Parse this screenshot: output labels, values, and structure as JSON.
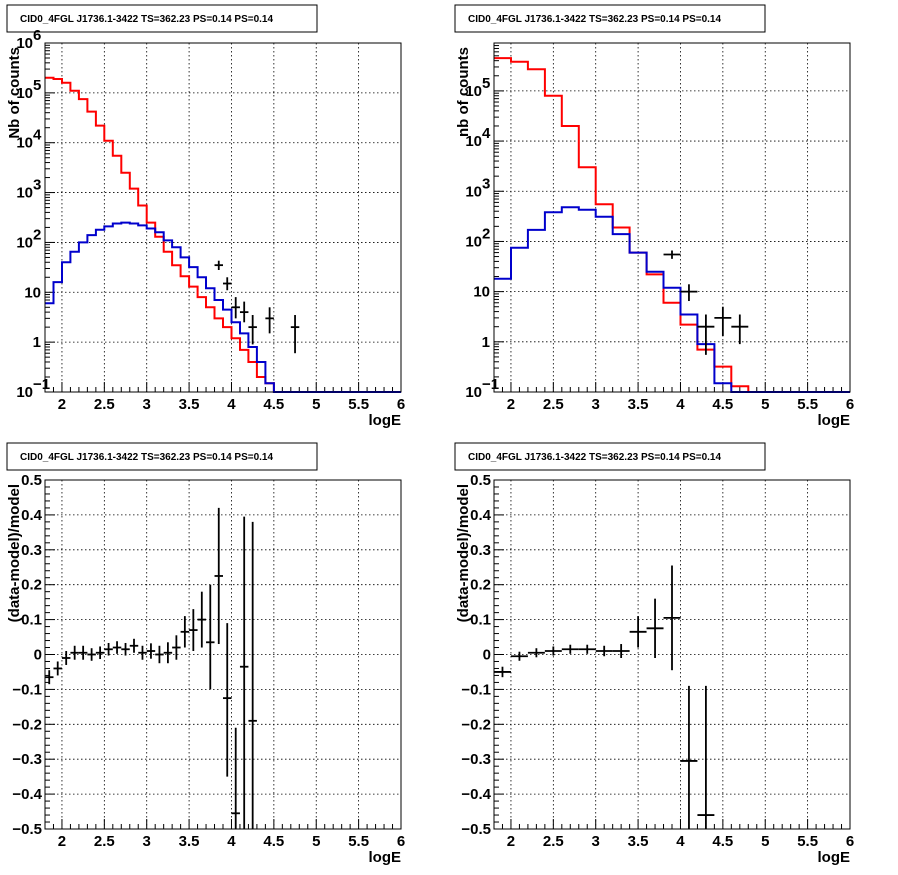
{
  "colors": {
    "model_total": "#ff0000",
    "model_component": "#0000cc",
    "data": "#000000"
  },
  "chart_data": [
    {
      "type": "line",
      "panel": "top-left",
      "title": "CID0_4FGL J1736.1-3422 TS=362.23 PS=0.14 PS=0.14",
      "xlabel": "logE",
      "ylabel": "Nb of counts",
      "xlim": [
        1.8,
        6.0
      ],
      "ylim": [
        0.1,
        1000000
      ],
      "log_y": true,
      "grid": true,
      "x_ticks": [
        "2",
        "2.5",
        "3",
        "3.5",
        "4",
        "4.5",
        "5",
        "5.5",
        "6"
      ],
      "x_tick_values": [
        2,
        2.5,
        3,
        3.5,
        4,
        4.5,
        5,
        5.5,
        6
      ],
      "y_ticks": [
        {
          "v": 0.1,
          "base": "10",
          "exp": "−1"
        },
        {
          "v": 1,
          "base": "1",
          "exp": ""
        },
        {
          "v": 10,
          "base": "10",
          "exp": ""
        },
        {
          "v": 100,
          "base": "10",
          "exp": "2"
        },
        {
          "v": 1000,
          "base": "10",
          "exp": "3"
        },
        {
          "v": 10000,
          "base": "10",
          "exp": "4"
        },
        {
          "v": 100000,
          "base": "10",
          "exp": "5"
        },
        {
          "v": 1000000,
          "base": "10",
          "exp": "6"
        }
      ],
      "bin_edges": [
        1.8,
        1.9,
        2.0,
        2.1,
        2.2,
        2.3,
        2.4,
        2.5,
        2.6,
        2.7,
        2.8,
        2.9,
        3.0,
        3.1,
        3.2,
        3.3,
        3.4,
        3.5,
        3.6,
        3.7,
        3.8,
        3.9,
        4.0,
        4.1,
        4.2,
        4.3,
        4.4,
        4.5,
        4.6,
        4.7,
        4.8,
        4.9,
        5.0,
        5.1,
        5.2,
        5.3,
        5.4,
        5.5,
        5.6,
        5.7,
        5.8,
        5.9,
        6.0
      ],
      "series": [
        {
          "color": "#ff0000",
          "values": [
            200000,
            190000,
            160000,
            110000,
            75000,
            42000,
            22000,
            11000,
            5500,
            2500,
            1200,
            550,
            250,
            130,
            65,
            35,
            21,
            13,
            8,
            5,
            3,
            2,
            1.2,
            0.7,
            0.4,
            0.2,
            0.15,
            0.1,
            0.1,
            0.1,
            0.1,
            0.1,
            0.1,
            0.1,
            0.1,
            0.1,
            0.1,
            0.1,
            0.1,
            0.1,
            0.1,
            0.1
          ]
        },
        {
          "color": "#0000cc",
          "values": [
            6,
            16,
            40,
            65,
            100,
            140,
            180,
            210,
            240,
            250,
            240,
            220,
            190,
            160,
            110,
            80,
            50,
            32,
            20,
            12,
            7,
            4.5,
            2.5,
            1.5,
            0.8,
            0.4,
            0.15,
            0.1,
            0.1,
            0.1,
            0.1,
            0.1,
            0.1,
            0.1,
            0.1,
            0.1,
            0.1,
            0.1,
            0.1,
            0.1,
            0.1,
            0.1
          ]
        }
      ],
      "points": [
        {
          "x": 3.85,
          "y": 35,
          "ylo": 28,
          "yhi": 43,
          "xerr": 0.05
        },
        {
          "x": 3.95,
          "y": 15,
          "ylo": 11,
          "yhi": 20,
          "xerr": 0.05
        },
        {
          "x": 4.05,
          "y": 5,
          "ylo": 3,
          "yhi": 8,
          "xerr": 0.05
        },
        {
          "x": 4.15,
          "y": 4,
          "ylo": 2.5,
          "yhi": 6.5,
          "xerr": 0.05
        },
        {
          "x": 4.25,
          "y": 2,
          "ylo": 0.9,
          "yhi": 3.5,
          "xerr": 0.05
        },
        {
          "x": 4.45,
          "y": 3,
          "ylo": 1.5,
          "yhi": 5,
          "xerr": 0.05
        },
        {
          "x": 4.75,
          "y": 2,
          "ylo": 0.6,
          "yhi": 3.5,
          "xerr": 0.05
        }
      ]
    },
    {
      "type": "line",
      "panel": "top-right",
      "title": "CID0_4FGL J1736.1-3422 TS=362.23 PS=0.14 PS=0.14",
      "xlabel": "logE",
      "ylabel": "nb of counts",
      "xlim": [
        1.8,
        6.0
      ],
      "ylim": [
        0.1,
        900000
      ],
      "log_y": true,
      "grid": true,
      "x_ticks": [
        "2",
        "2.5",
        "3",
        "3.5",
        "4",
        "4.5",
        "5",
        "5.5",
        "6"
      ],
      "x_tick_values": [
        2,
        2.5,
        3,
        3.5,
        4,
        4.5,
        5,
        5.5,
        6
      ],
      "y_ticks": [
        {
          "v": 0.1,
          "base": "10",
          "exp": "−1"
        },
        {
          "v": 1,
          "base": "1",
          "exp": ""
        },
        {
          "v": 10,
          "base": "10",
          "exp": ""
        },
        {
          "v": 100,
          "base": "10",
          "exp": "2"
        },
        {
          "v": 1000,
          "base": "10",
          "exp": "3"
        },
        {
          "v": 10000,
          "base": "10",
          "exp": "4"
        },
        {
          "v": 100000,
          "base": "10",
          "exp": "5"
        }
      ],
      "bin_edges": [
        1.8,
        2.0,
        2.2,
        2.4,
        2.6,
        2.8,
        3.0,
        3.2,
        3.4,
        3.6,
        3.8,
        4.0,
        4.2,
        4.4,
        4.6,
        4.8,
        5.0,
        5.2,
        5.4,
        5.6,
        5.8,
        6.0
      ],
      "series": [
        {
          "color": "#ff0000",
          "values": [
            450000,
            380000,
            270000,
            80000,
            20000,
            3000,
            550,
            190,
            60,
            22,
            6,
            2.2,
            0.7,
            0.32,
            0.13,
            0.1,
            0.1,
            0.1,
            0.1,
            0.1,
            0.1
          ]
        },
        {
          "color": "#0000cc",
          "values": [
            18,
            75,
            170,
            380,
            480,
            430,
            310,
            140,
            60,
            25,
            12,
            3.5,
            0.9,
            0.15,
            0.1,
            0.1,
            0.1,
            0.1,
            0.1,
            0.1,
            0.1
          ]
        }
      ],
      "points": [
        {
          "x": 3.9,
          "y": 55,
          "ylo": 45,
          "yhi": 66,
          "xerr": 0.1
        },
        {
          "x": 4.1,
          "y": 10,
          "ylo": 6.5,
          "yhi": 14,
          "xerr": 0.1
        },
        {
          "x": 4.3,
          "y": 2,
          "ylo": 0.55,
          "yhi": 3.5,
          "xerr": 0.1
        },
        {
          "x": 4.5,
          "y": 3,
          "ylo": 1.3,
          "yhi": 5,
          "xerr": 0.1
        },
        {
          "x": 4.7,
          "y": 2,
          "ylo": 0.9,
          "yhi": 3.5,
          "xerr": 0.1
        }
      ]
    },
    {
      "type": "scatter",
      "panel": "bottom-left",
      "title": "CID0_4FGL J1736.1-3422 TS=362.23 PS=0.14 PS=0.14",
      "xlabel": "logE",
      "ylabel": "(data-model)/model",
      "xlim": [
        1.8,
        6.0
      ],
      "ylim": [
        -0.5,
        0.5
      ],
      "log_y": false,
      "grid": true,
      "x_ticks": [
        "2",
        "2.5",
        "3",
        "3.5",
        "4",
        "4.5",
        "5",
        "5.5",
        "6"
      ],
      "x_tick_values": [
        2,
        2.5,
        3,
        3.5,
        4,
        4.5,
        5,
        5.5,
        6
      ],
      "y_ticks": [
        {
          "v": -0.5,
          "label": "−0.5"
        },
        {
          "v": -0.4,
          "label": "−0.4"
        },
        {
          "v": -0.3,
          "label": "−0.3"
        },
        {
          "v": -0.2,
          "label": "−0.2"
        },
        {
          "v": -0.1,
          "label": "−0.1"
        },
        {
          "v": 0,
          "label": "0"
        },
        {
          "v": 0.1,
          "label": "0.1"
        },
        {
          "v": 0.2,
          "label": "0.2"
        },
        {
          "v": 0.3,
          "label": "0.3"
        },
        {
          "v": 0.4,
          "label": "0.4"
        },
        {
          "v": 0.5,
          "label": "0.5"
        }
      ],
      "points": [
        {
          "x": 1.85,
          "y": -0.065,
          "ylo": -0.085,
          "yhi": -0.045,
          "xerr": 0.05
        },
        {
          "x": 1.95,
          "y": -0.04,
          "ylo": -0.06,
          "yhi": -0.02,
          "xerr": 0.05
        },
        {
          "x": 2.05,
          "y": -0.01,
          "ylo": -0.03,
          "yhi": 0.01,
          "xerr": 0.05
        },
        {
          "x": 2.15,
          "y": 0.005,
          "ylo": -0.015,
          "yhi": 0.025,
          "xerr": 0.05
        },
        {
          "x": 2.25,
          "y": 0.005,
          "ylo": -0.015,
          "yhi": 0.025,
          "xerr": 0.05
        },
        {
          "x": 2.35,
          "y": 0.0,
          "ylo": -0.018,
          "yhi": 0.018,
          "xerr": 0.05
        },
        {
          "x": 2.45,
          "y": 0.005,
          "ylo": -0.013,
          "yhi": 0.023,
          "xerr": 0.05
        },
        {
          "x": 2.55,
          "y": 0.015,
          "ylo": -0.003,
          "yhi": 0.033,
          "xerr": 0.05
        },
        {
          "x": 2.65,
          "y": 0.02,
          "ylo": 0.002,
          "yhi": 0.038,
          "xerr": 0.05
        },
        {
          "x": 2.75,
          "y": 0.015,
          "ylo": -0.003,
          "yhi": 0.033,
          "xerr": 0.05
        },
        {
          "x": 2.85,
          "y": 0.025,
          "ylo": 0.005,
          "yhi": 0.045,
          "xerr": 0.05
        },
        {
          "x": 2.95,
          "y": 0.005,
          "ylo": -0.015,
          "yhi": 0.025,
          "xerr": 0.05
        },
        {
          "x": 3.05,
          "y": 0.01,
          "ylo": -0.012,
          "yhi": 0.032,
          "xerr": 0.05
        },
        {
          "x": 3.15,
          "y": 0.0,
          "ylo": -0.025,
          "yhi": 0.025,
          "xerr": 0.05
        },
        {
          "x": 3.25,
          "y": 0.005,
          "ylo": -0.025,
          "yhi": 0.035,
          "xerr": 0.05
        },
        {
          "x": 3.35,
          "y": 0.02,
          "ylo": -0.015,
          "yhi": 0.055,
          "xerr": 0.05
        },
        {
          "x": 3.45,
          "y": 0.065,
          "ylo": 0.02,
          "yhi": 0.11,
          "xerr": 0.05
        },
        {
          "x": 3.55,
          "y": 0.07,
          "ylo": 0.01,
          "yhi": 0.13,
          "xerr": 0.05
        },
        {
          "x": 3.65,
          "y": 0.1,
          "ylo": 0.02,
          "yhi": 0.18,
          "xerr": 0.05
        },
        {
          "x": 3.75,
          "y": 0.035,
          "ylo": -0.1,
          "yhi": 0.2,
          "xerr": 0.05
        },
        {
          "x": 3.85,
          "y": 0.225,
          "ylo": 0.03,
          "yhi": 0.42,
          "xerr": 0.05
        },
        {
          "x": 3.95,
          "y": -0.125,
          "ylo": -0.35,
          "yhi": 0.09,
          "xerr": 0.05
        },
        {
          "x": 4.05,
          "y": -0.455,
          "ylo": -0.5,
          "yhi": -0.21,
          "xerr": 0.05
        },
        {
          "x": 4.15,
          "y": -0.035,
          "ylo": -0.5,
          "yhi": 0.395,
          "xerr": 0.05
        },
        {
          "x": 4.25,
          "y": -0.19,
          "ylo": -0.5,
          "yhi": 0.38,
          "xerr": 0.05
        }
      ]
    },
    {
      "type": "scatter",
      "panel": "bottom-right",
      "title": "CID0_4FGL J1736.1-3422 TS=362.23 PS=0.14 PS=0.14",
      "xlabel": "logE",
      "ylabel": "(data-model)/model",
      "xlim": [
        1.8,
        6.0
      ],
      "ylim": [
        -0.5,
        0.5
      ],
      "log_y": false,
      "grid": true,
      "x_ticks": [
        "2",
        "2.5",
        "3",
        "3.5",
        "4",
        "4.5",
        "5",
        "5.5",
        "6"
      ],
      "x_tick_values": [
        2,
        2.5,
        3,
        3.5,
        4,
        4.5,
        5,
        5.5,
        6
      ],
      "y_ticks": [
        {
          "v": -0.5,
          "label": "−0.5"
        },
        {
          "v": -0.4,
          "label": "−0.4"
        },
        {
          "v": -0.3,
          "label": "−0.3"
        },
        {
          "v": -0.2,
          "label": "−0.2"
        },
        {
          "v": -0.1,
          "label": "−0.1"
        },
        {
          "v": 0,
          "label": "0"
        },
        {
          "v": 0.1,
          "label": "0.1"
        },
        {
          "v": 0.2,
          "label": "0.2"
        },
        {
          "v": 0.3,
          "label": "0.3"
        },
        {
          "v": 0.4,
          "label": "0.4"
        },
        {
          "v": 0.5,
          "label": "0.5"
        }
      ],
      "points": [
        {
          "x": 1.9,
          "y": -0.05,
          "ylo": -0.065,
          "yhi": -0.035,
          "xerr": 0.1
        },
        {
          "x": 2.1,
          "y": -0.005,
          "ylo": -0.018,
          "yhi": 0.008,
          "xerr": 0.1
        },
        {
          "x": 2.3,
          "y": 0.005,
          "ylo": -0.008,
          "yhi": 0.018,
          "xerr": 0.1
        },
        {
          "x": 2.5,
          "y": 0.01,
          "ylo": -0.003,
          "yhi": 0.023,
          "xerr": 0.1
        },
        {
          "x": 2.7,
          "y": 0.015,
          "ylo": 0.002,
          "yhi": 0.028,
          "xerr": 0.1
        },
        {
          "x": 2.9,
          "y": 0.015,
          "ylo": 0.002,
          "yhi": 0.028,
          "xerr": 0.1
        },
        {
          "x": 3.1,
          "y": 0.01,
          "ylo": -0.005,
          "yhi": 0.025,
          "xerr": 0.1
        },
        {
          "x": 3.3,
          "y": 0.01,
          "ylo": -0.01,
          "yhi": 0.03,
          "xerr": 0.1
        },
        {
          "x": 3.5,
          "y": 0.065,
          "ylo": 0.02,
          "yhi": 0.11,
          "xerr": 0.1
        },
        {
          "x": 3.7,
          "y": 0.075,
          "ylo": -0.01,
          "yhi": 0.16,
          "xerr": 0.1
        },
        {
          "x": 3.9,
          "y": 0.105,
          "ylo": -0.045,
          "yhi": 0.255,
          "xerr": 0.1
        },
        {
          "x": 4.1,
          "y": -0.305,
          "ylo": -0.5,
          "yhi": -0.09,
          "xerr": 0.1
        },
        {
          "x": 4.3,
          "y": -0.46,
          "ylo": -0.5,
          "yhi": -0.09,
          "xerr": 0.1
        }
      ]
    }
  ]
}
